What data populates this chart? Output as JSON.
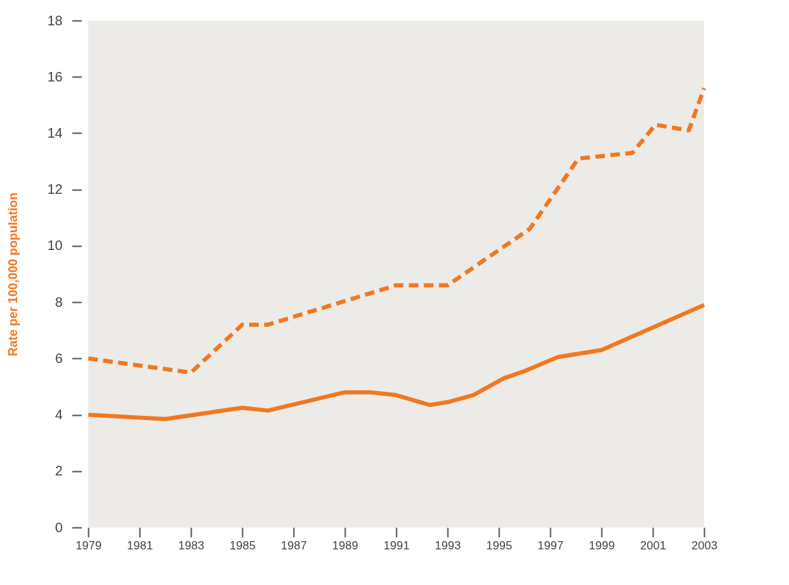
{
  "chart_data": {
    "type": "line",
    "ylabel": "Rate per 100,000 population",
    "xlim": [
      1979,
      2003
    ],
    "xticks": [
      1979,
      1981,
      1983,
      1985,
      1987,
      1989,
      1991,
      1993,
      1995,
      1997,
      1999,
      2001,
      2003
    ],
    "ylim": [
      0,
      18
    ],
    "yticks": [
      0,
      2,
      4,
      6,
      8,
      10,
      12,
      14,
      16,
      18
    ],
    "grid": false,
    "marker": "none",
    "series": [
      {
        "color": "#f07820",
        "line_style": "dashed",
        "x": [
          1979,
          1983,
          1985,
          1986,
          1991,
          1993,
          1996.2,
          1998.1,
          2000.2,
          2001.1,
          2002.4,
          2003
        ],
        "values": [
          6.0,
          5.5,
          7.2,
          7.2,
          8.6,
          8.6,
          10.6,
          13.1,
          13.3,
          14.3,
          14.1,
          15.6
        ]
      },
      {
        "color": "#f07820",
        "line_style": "solid",
        "x": [
          1979,
          1982,
          1985,
          1986,
          1989,
          1990,
          1991,
          1992.3,
          1993,
          1994,
          1995.2,
          1996,
          1997.3,
          1999,
          2003
        ],
        "values": [
          4.0,
          3.85,
          4.25,
          4.15,
          4.8,
          4.8,
          4.7,
          4.35,
          4.45,
          4.7,
          5.3,
          5.55,
          6.05,
          6.3,
          7.9
        ]
      }
    ]
  }
}
